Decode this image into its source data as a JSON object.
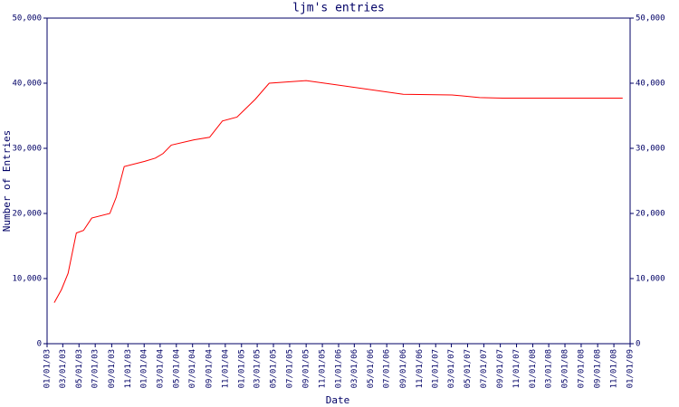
{
  "chart_data": {
    "type": "line",
    "title": "ljm's entries",
    "x_label": "Date",
    "y_label": "Number of Entries",
    "x": [
      "01/28/03",
      "02/24/03",
      "03/21/03",
      "04/21/03",
      "05/18/03",
      "06/18/03",
      "08/25/03",
      "09/18/03",
      "10/18/03",
      "01/03/04",
      "02/12/04",
      "03/12/04",
      "04/12/04",
      "07/06/04",
      "09/03/04",
      "10/21/04",
      "12/15/04",
      "02/21/05",
      "04/15/05",
      "09/01/05",
      "09/01/06",
      "03/03/07",
      "06/15/07",
      "09/09/07",
      "12/04/08"
    ],
    "series": [
      {
        "name": "entries",
        "color": "#ff0000",
        "values": [
          6300,
          8300,
          10800,
          17000,
          17400,
          19300,
          20000,
          22500,
          27200,
          28000,
          28500,
          29200,
          30500,
          31300,
          31700,
          34200,
          34800,
          37500,
          40000,
          40400,
          38300,
          38200,
          37800,
          37700,
          37700
        ]
      }
    ],
    "xlim": [
      "01/01/03",
      "01/01/09"
    ],
    "xticks": [
      "01/01/03",
      "03/01/03",
      "05/01/03",
      "07/01/03",
      "09/01/03",
      "11/01/03",
      "01/01/04",
      "03/01/04",
      "05/01/04",
      "07/01/04",
      "09/01/04",
      "11/01/04",
      "01/01/05",
      "03/01/05",
      "05/01/05",
      "07/01/05",
      "09/01/05",
      "11/01/05",
      "01/01/06",
      "03/01/06",
      "05/01/06",
      "07/01/06",
      "09/01/06",
      "11/01/06",
      "01/01/07",
      "03/01/07",
      "05/01/07",
      "07/01/07",
      "09/01/07",
      "11/01/07",
      "01/01/08",
      "03/01/08",
      "05/01/08",
      "07/01/08",
      "09/01/08",
      "11/01/08",
      "01/01/09"
    ],
    "ylim": [
      0,
      50000
    ],
    "yticks": [
      0,
      {
        "value": 10000,
        "label": "10,000"
      },
      {
        "value": 20000,
        "label": "20,000"
      },
      {
        "value": 30000,
        "label": "30,000"
      },
      {
        "value": 40000,
        "label": "40,000"
      },
      {
        "value": 50000,
        "label": "50,000"
      }
    ]
  }
}
